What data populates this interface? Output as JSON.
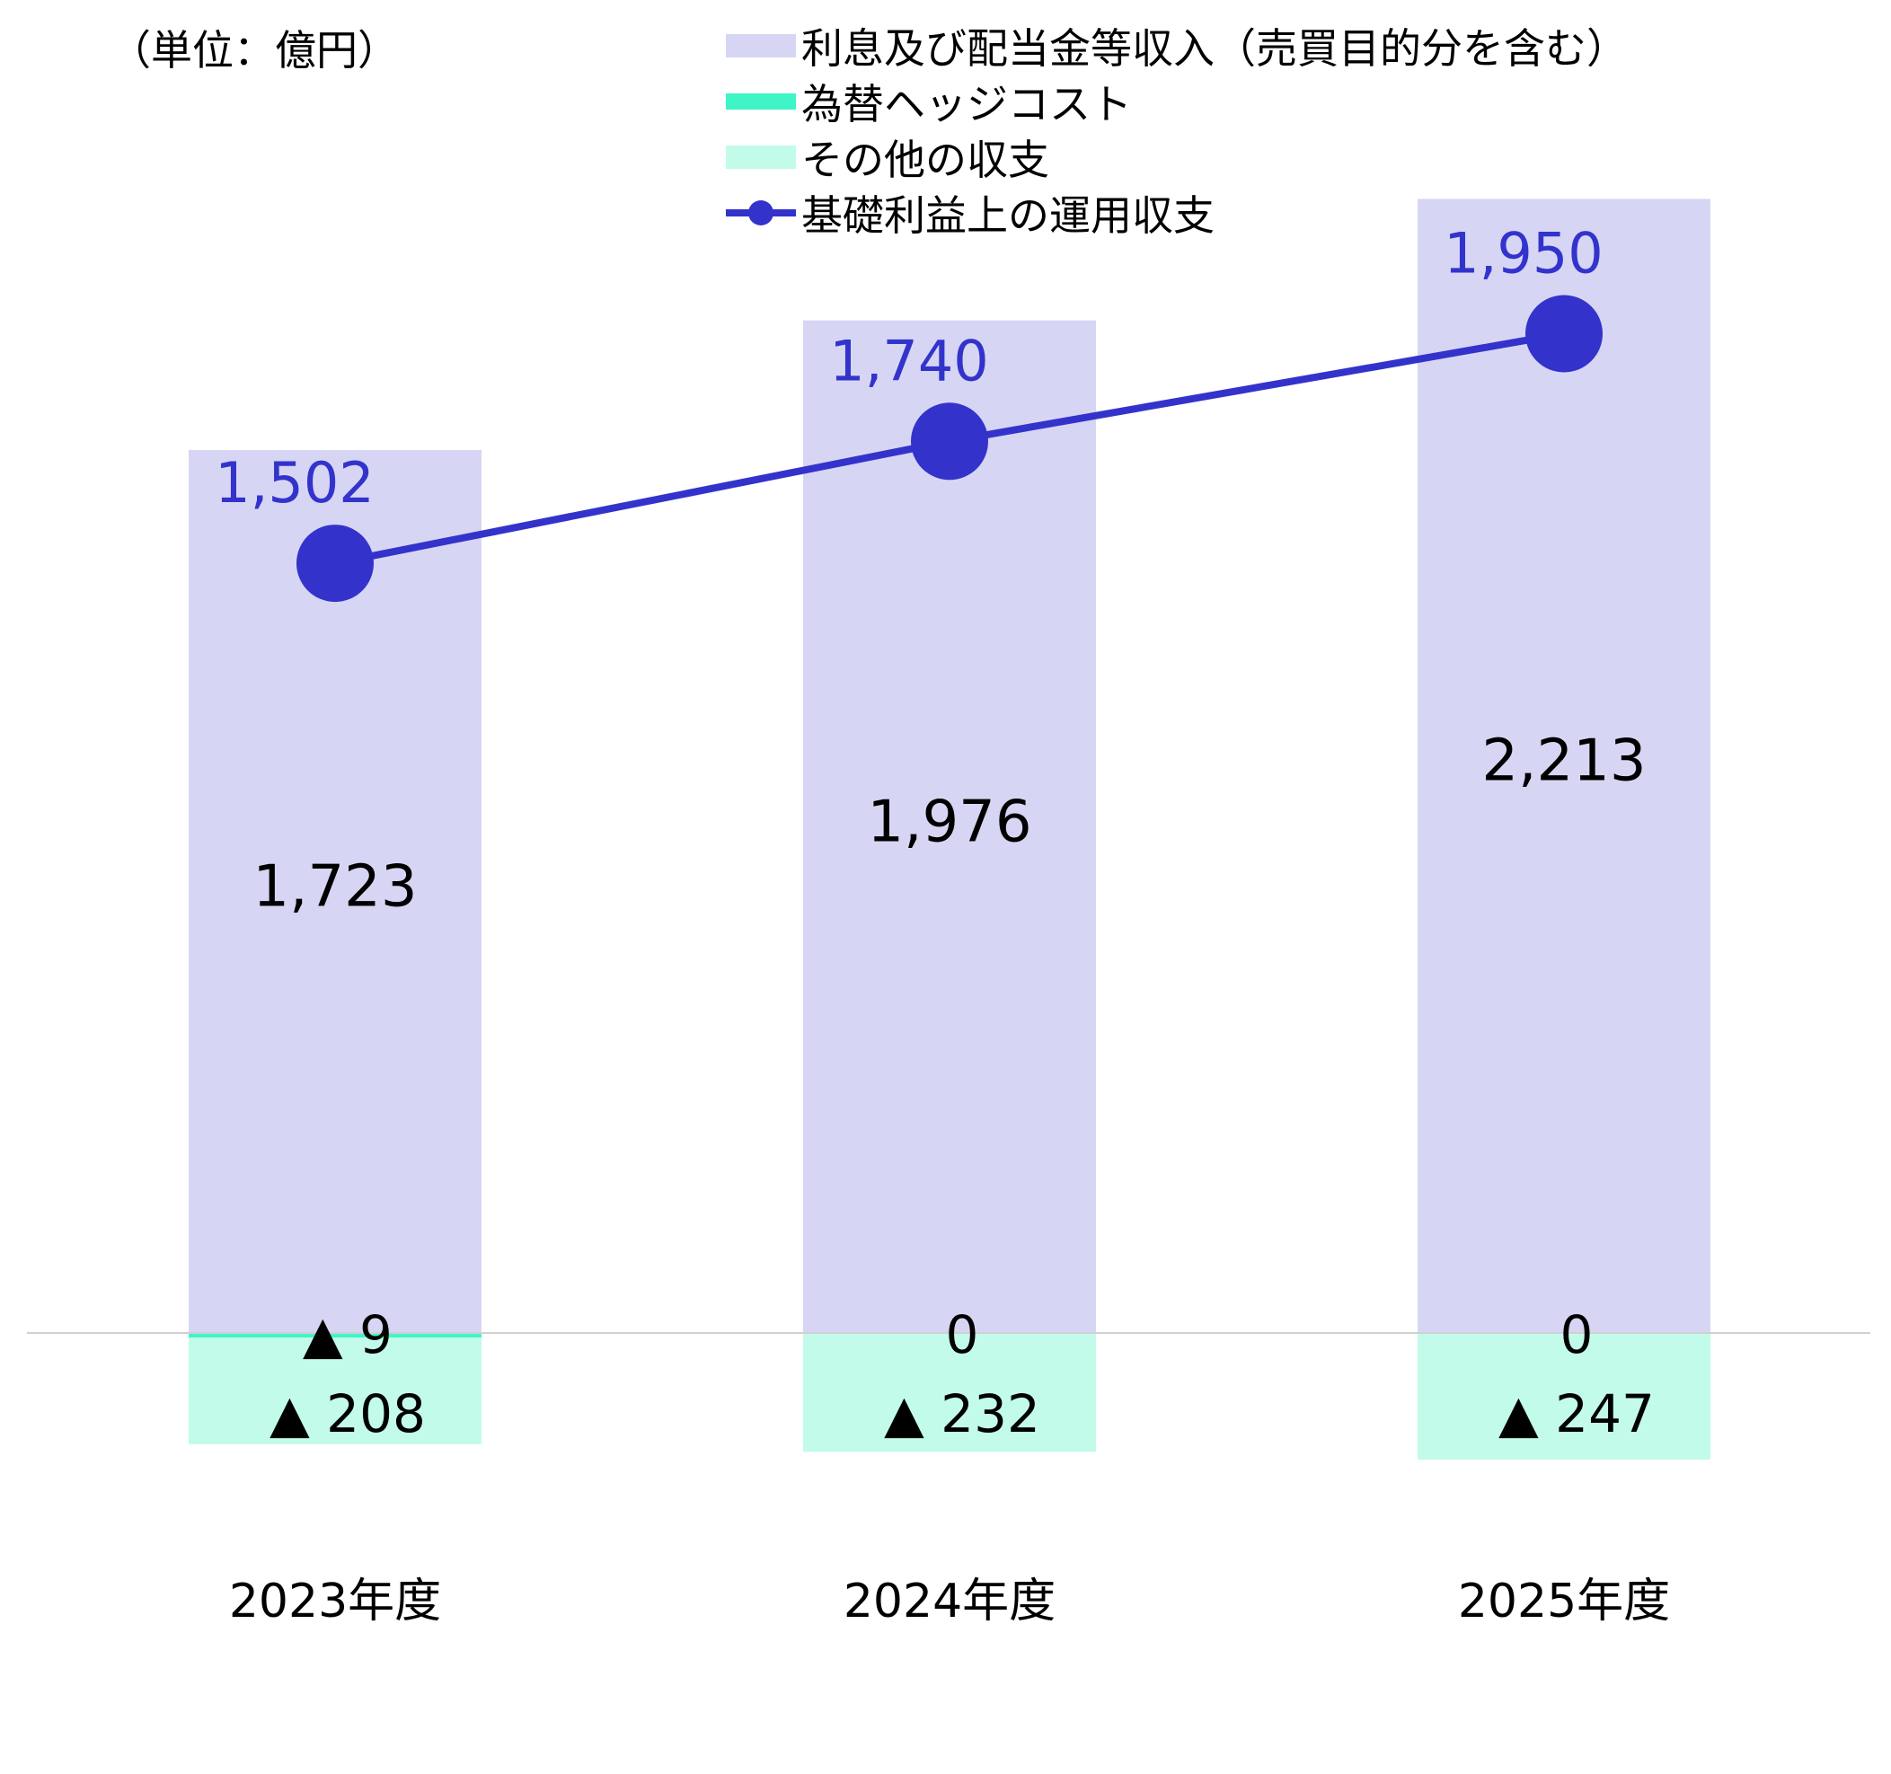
{
  "unit_label": "（単位：億円）",
  "colors": {
    "interest": "#d6d6f4",
    "hedge": "#3ff5c8",
    "other": "#c2fbea",
    "line": "#3333cc",
    "axis": "#d0d0d0",
    "text": "#000000"
  },
  "legend": [
    {
      "key": "interest",
      "label": "利息及び配当金等収入（売買目的分を含む）",
      "symbol": "rect"
    },
    {
      "key": "hedge",
      "label": "為替ヘッジコスト",
      "symbol": "thin-rect"
    },
    {
      "key": "other",
      "label": "その他の収支",
      "symbol": "rect"
    },
    {
      "key": "line",
      "label": "基礎利益上の運用収支",
      "symbol": "line-marker"
    }
  ],
  "chart_data": {
    "type": "bar",
    "stacked": true,
    "categories": [
      "2023年度",
      "2024年度",
      "2025年度"
    ],
    "series": [
      {
        "key": "interest",
        "name": "利息及び配当金等収入（売買目的分を含む）",
        "values": [
          1723,
          1976,
          2213
        ],
        "labels": [
          "1,723",
          "1,976",
          "2,213"
        ]
      },
      {
        "key": "hedge",
        "name": "為替ヘッジコスト",
        "values": [
          -9,
          0,
          0
        ],
        "labels": [
          "▲ 9",
          "0",
          "0"
        ]
      },
      {
        "key": "other",
        "name": "その他の収支",
        "values": [
          -208,
          -232,
          -247
        ],
        "labels": [
          "▲ 208",
          "▲ 232",
          "▲ 247"
        ]
      }
    ],
    "line": {
      "key": "line",
      "name": "基礎利益上の運用収支",
      "values": [
        1502,
        1740,
        1950
      ],
      "labels": [
        "1,502",
        "1,740",
        "1,950"
      ]
    },
    "ylim": [
      -600,
      2400
    ],
    "grid": false,
    "legend_position": "top"
  }
}
